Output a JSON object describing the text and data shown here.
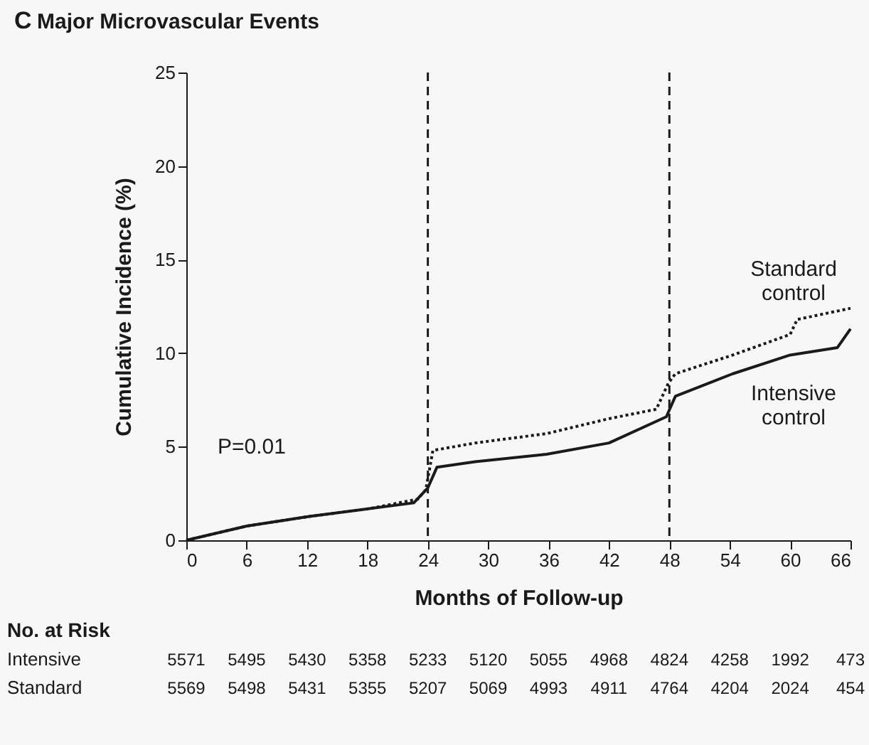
{
  "chart_data": {
    "type": "line",
    "title": "Major Microvascular Events",
    "xlabel": "Months of Follow-up",
    "ylabel": "Cumulative Incidence (%)",
    "xlim": [
      0,
      66
    ],
    "xticks": [
      0,
      6,
      12,
      18,
      24,
      30,
      36,
      42,
      48,
      54,
      60,
      66
    ],
    "ylim": [
      0,
      25
    ],
    "yticks": [
      0,
      5,
      10,
      15,
      20,
      25
    ],
    "grid": false,
    "series": [
      {
        "name": "Standard control",
        "color": "#1a1a1a",
        "line_style": "dotted",
        "x": [
          0,
          6,
          12.2,
          18.3,
          23,
          23.8,
          24.5,
          28.7,
          35.8,
          42,
          46.7,
          47.9,
          48.6,
          54.3,
          60,
          60.7,
          66
        ],
        "values": [
          0,
          0.76,
          1.27,
          1.7,
          2.2,
          2.7,
          4.8,
          5.2,
          5.7,
          6.5,
          7.0,
          8.4,
          8.9,
          9.9,
          11.0,
          11.8,
          12.4
        ]
      },
      {
        "name": "Intensive control",
        "color": "#1a1a1a",
        "line_style": "solid",
        "x": [
          0,
          6,
          12.2,
          18.3,
          22.6,
          24,
          24.9,
          28.7,
          35.8,
          42,
          47.7,
          48.6,
          54.3,
          60,
          64.7,
          66
        ],
        "values": [
          0,
          0.76,
          1.27,
          1.7,
          2.0,
          2.8,
          3.9,
          4.2,
          4.6,
          5.2,
          6.6,
          7.7,
          8.9,
          9.9,
          10.3,
          11.3
        ]
      }
    ],
    "ref_lines": [
      {
        "axis": "x",
        "value": 24,
        "line_style": "dashed",
        "color": "#1a1a1a"
      },
      {
        "axis": "x",
        "value": 48,
        "line_style": "dashed",
        "color": "#1a1a1a"
      }
    ],
    "annotations": [
      "C",
      "P=0.01",
      "No. at Risk",
      "Intensive 5571 5495 5430 5358 5233 5120 5055 4968 4824 4258 1992 473",
      "Standard 5569 5498 5431 5355 5207 5069 4993 4911 4764 4204 2024 454"
    ]
  }
}
